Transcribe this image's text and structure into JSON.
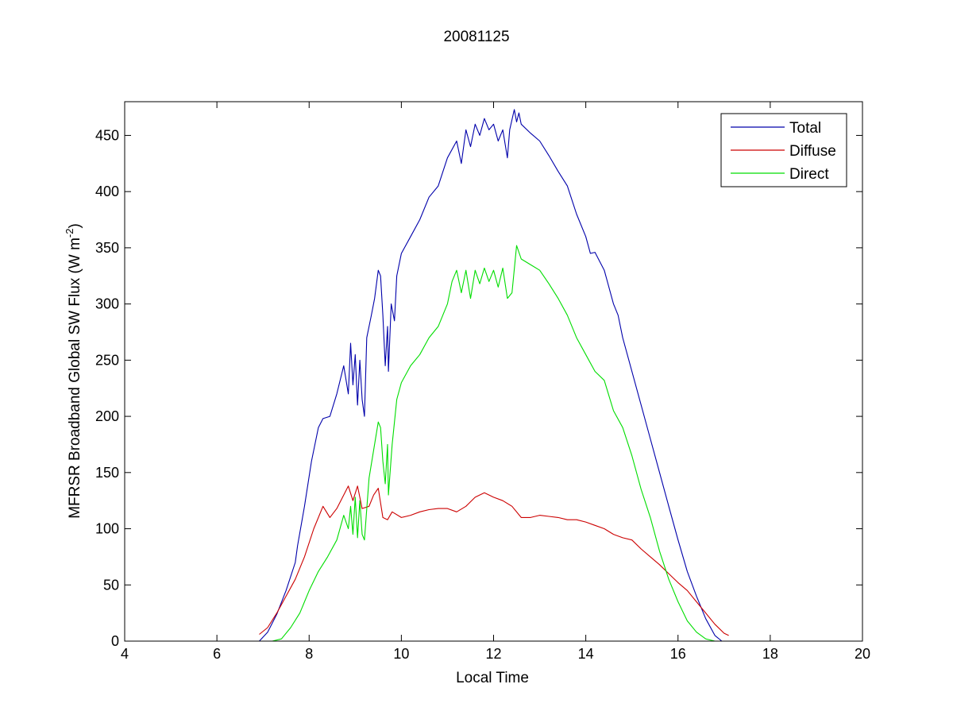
{
  "chart_data": {
    "type": "line",
    "title": "20081125",
    "xlabel": "Local Time",
    "ylabel": "MFRSR Broadband Global SW Flux (W m",
    "ylabel_sup": "-2",
    "ylabel_end": ")",
    "xlim": [
      4,
      20
    ],
    "ylim": [
      0,
      480
    ],
    "xticks": [
      4,
      6,
      8,
      10,
      12,
      14,
      16,
      18,
      20
    ],
    "yticks": [
      0,
      50,
      100,
      150,
      200,
      250,
      300,
      350,
      400,
      450
    ],
    "grid": false,
    "legend": {
      "position": "top-right"
    },
    "series": [
      {
        "name": "Total",
        "color": "#0000aa",
        "points": [
          [
            6.92,
            0
          ],
          [
            7.1,
            8
          ],
          [
            7.3,
            24
          ],
          [
            7.5,
            45
          ],
          [
            7.7,
            70
          ],
          [
            7.75,
            85
          ],
          [
            7.9,
            120
          ],
          [
            8.05,
            160
          ],
          [
            8.2,
            190
          ],
          [
            8.3,
            198
          ],
          [
            8.45,
            200
          ],
          [
            8.6,
            220
          ],
          [
            8.75,
            245
          ],
          [
            8.85,
            220
          ],
          [
            8.9,
            265
          ],
          [
            8.95,
            228
          ],
          [
            9.0,
            255
          ],
          [
            9.05,
            210
          ],
          [
            9.1,
            250
          ],
          [
            9.15,
            215
          ],
          [
            9.2,
            200
          ],
          [
            9.25,
            270
          ],
          [
            9.35,
            290
          ],
          [
            9.42,
            305
          ],
          [
            9.5,
            330
          ],
          [
            9.55,
            325
          ],
          [
            9.6,
            290
          ],
          [
            9.65,
            245
          ],
          [
            9.7,
            280
          ],
          [
            9.72,
            240
          ],
          [
            9.78,
            300
          ],
          [
            9.85,
            285
          ],
          [
            9.9,
            325
          ],
          [
            10.0,
            345
          ],
          [
            10.2,
            360
          ],
          [
            10.4,
            375
          ],
          [
            10.6,
            395
          ],
          [
            10.8,
            405
          ],
          [
            11.0,
            430
          ],
          [
            11.2,
            445
          ],
          [
            11.3,
            425
          ],
          [
            11.4,
            455
          ],
          [
            11.5,
            440
          ],
          [
            11.6,
            460
          ],
          [
            11.7,
            450
          ],
          [
            11.8,
            465
          ],
          [
            11.9,
            455
          ],
          [
            12.0,
            460
          ],
          [
            12.1,
            445
          ],
          [
            12.2,
            455
          ],
          [
            12.3,
            430
          ],
          [
            12.35,
            455
          ],
          [
            12.45,
            473
          ],
          [
            12.5,
            462
          ],
          [
            12.55,
            470
          ],
          [
            12.6,
            460
          ],
          [
            12.8,
            452
          ],
          [
            13.0,
            445
          ],
          [
            13.2,
            432
          ],
          [
            13.4,
            418
          ],
          [
            13.6,
            405
          ],
          [
            13.8,
            380
          ],
          [
            14.0,
            360
          ],
          [
            14.1,
            345
          ],
          [
            14.2,
            346
          ],
          [
            14.4,
            330
          ],
          [
            14.6,
            300
          ],
          [
            14.7,
            290
          ],
          [
            14.8,
            270
          ],
          [
            15.0,
            240
          ],
          [
            15.2,
            210
          ],
          [
            15.4,
            180
          ],
          [
            15.6,
            150
          ],
          [
            15.8,
            120
          ],
          [
            16.0,
            90
          ],
          [
            16.2,
            62
          ],
          [
            16.4,
            40
          ],
          [
            16.6,
            20
          ],
          [
            16.8,
            5
          ],
          [
            16.95,
            0
          ]
        ]
      },
      {
        "name": "Diffuse",
        "color": "#cc0000",
        "points": [
          [
            6.92,
            6
          ],
          [
            7.1,
            12
          ],
          [
            7.3,
            25
          ],
          [
            7.5,
            40
          ],
          [
            7.7,
            55
          ],
          [
            7.9,
            75
          ],
          [
            8.1,
            100
          ],
          [
            8.3,
            120
          ],
          [
            8.45,
            110
          ],
          [
            8.6,
            118
          ],
          [
            8.75,
            130
          ],
          [
            8.85,
            138
          ],
          [
            8.95,
            125
          ],
          [
            9.05,
            138
          ],
          [
            9.15,
            118
          ],
          [
            9.3,
            120
          ],
          [
            9.4,
            130
          ],
          [
            9.5,
            136
          ],
          [
            9.6,
            110
          ],
          [
            9.7,
            108
          ],
          [
            9.8,
            115
          ],
          [
            10.0,
            110
          ],
          [
            10.2,
            112
          ],
          [
            10.4,
            115
          ],
          [
            10.6,
            117
          ],
          [
            10.8,
            118
          ],
          [
            11.0,
            118
          ],
          [
            11.2,
            115
          ],
          [
            11.4,
            120
          ],
          [
            11.6,
            128
          ],
          [
            11.8,
            132
          ],
          [
            12.0,
            128
          ],
          [
            12.2,
            125
          ],
          [
            12.4,
            120
          ],
          [
            12.6,
            110
          ],
          [
            12.8,
            110
          ],
          [
            13.0,
            112
          ],
          [
            13.2,
            111
          ],
          [
            13.4,
            110
          ],
          [
            13.6,
            108
          ],
          [
            13.8,
            108
          ],
          [
            14.0,
            106
          ],
          [
            14.2,
            103
          ],
          [
            14.4,
            100
          ],
          [
            14.6,
            95
          ],
          [
            14.8,
            92
          ],
          [
            15.0,
            90
          ],
          [
            15.2,
            82
          ],
          [
            15.4,
            75
          ],
          [
            15.6,
            68
          ],
          [
            15.8,
            60
          ],
          [
            16.0,
            52
          ],
          [
            16.2,
            45
          ],
          [
            16.4,
            35
          ],
          [
            16.6,
            25
          ],
          [
            16.8,
            15
          ],
          [
            17.0,
            7
          ],
          [
            17.1,
            5
          ]
        ]
      },
      {
        "name": "Direct",
        "color": "#00dd00",
        "points": [
          [
            6.95,
            0
          ],
          [
            7.2,
            0
          ],
          [
            7.4,
            2
          ],
          [
            7.6,
            12
          ],
          [
            7.8,
            25
          ],
          [
            8.0,
            45
          ],
          [
            8.2,
            62
          ],
          [
            8.4,
            75
          ],
          [
            8.6,
            90
          ],
          [
            8.75,
            112
          ],
          [
            8.85,
            100
          ],
          [
            8.9,
            120
          ],
          [
            8.95,
            95
          ],
          [
            9.0,
            128
          ],
          [
            9.05,
            92
          ],
          [
            9.1,
            125
          ],
          [
            9.15,
            95
          ],
          [
            9.2,
            90
          ],
          [
            9.3,
            145
          ],
          [
            9.4,
            170
          ],
          [
            9.5,
            195
          ],
          [
            9.55,
            190
          ],
          [
            9.6,
            160
          ],
          [
            9.65,
            140
          ],
          [
            9.7,
            175
          ],
          [
            9.72,
            130
          ],
          [
            9.8,
            175
          ],
          [
            9.9,
            215
          ],
          [
            10.0,
            230
          ],
          [
            10.2,
            245
          ],
          [
            10.4,
            255
          ],
          [
            10.6,
            270
          ],
          [
            10.8,
            280
          ],
          [
            11.0,
            300
          ],
          [
            11.1,
            320
          ],
          [
            11.2,
            330
          ],
          [
            11.3,
            310
          ],
          [
            11.4,
            330
          ],
          [
            11.5,
            305
          ],
          [
            11.6,
            330
          ],
          [
            11.7,
            318
          ],
          [
            11.8,
            332
          ],
          [
            11.9,
            320
          ],
          [
            12.0,
            330
          ],
          [
            12.1,
            315
          ],
          [
            12.2,
            332
          ],
          [
            12.3,
            305
          ],
          [
            12.4,
            310
          ],
          [
            12.5,
            352
          ],
          [
            12.6,
            340
          ],
          [
            12.8,
            335
          ],
          [
            13.0,
            330
          ],
          [
            13.2,
            318
          ],
          [
            13.4,
            305
          ],
          [
            13.6,
            290
          ],
          [
            13.8,
            270
          ],
          [
            14.0,
            255
          ],
          [
            14.2,
            240
          ],
          [
            14.4,
            232
          ],
          [
            14.6,
            205
          ],
          [
            14.8,
            190
          ],
          [
            15.0,
            165
          ],
          [
            15.2,
            135
          ],
          [
            15.4,
            110
          ],
          [
            15.6,
            80
          ],
          [
            15.8,
            55
          ],
          [
            16.0,
            35
          ],
          [
            16.2,
            18
          ],
          [
            16.4,
            8
          ],
          [
            16.6,
            2
          ],
          [
            16.8,
            0
          ]
        ]
      }
    ]
  }
}
